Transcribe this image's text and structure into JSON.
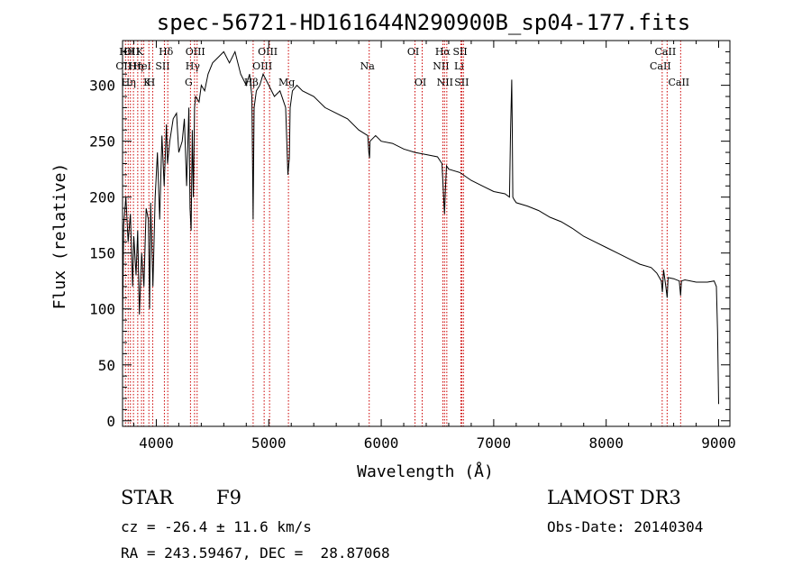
{
  "chart_data": {
    "type": "line",
    "title": "spec-56721-HD161644N290900B_sp04-177.fits",
    "xlabel": "Wavelength (Å)",
    "ylabel": "Flux (relative)",
    "xlim": [
      3700,
      9100
    ],
    "ylim": [
      -5,
      340
    ],
    "xticks": [
      4000,
      5000,
      6000,
      7000,
      8000,
      9000
    ],
    "xtick_labels": [
      "4000",
      "5000",
      "6000",
      "7000",
      "8000",
      "9000"
    ],
    "yticks": [
      0,
      50,
      100,
      150,
      200,
      250,
      300
    ],
    "ytick_labels": [
      "0",
      "50",
      "100",
      "150",
      "200",
      "250",
      "300"
    ],
    "grid": false,
    "line_color": "#000000",
    "marker_color": "#cc0000",
    "series": [
      {
        "name": "flux",
        "x": [
          3700,
          3710,
          3730,
          3750,
          3770,
          3790,
          3800,
          3820,
          3835,
          3850,
          3870,
          3890,
          3910,
          3930,
          3940,
          3950,
          3970,
          3990,
          4010,
          4030,
          4050,
          4070,
          4090,
          4100,
          4120,
          4150,
          4180,
          4200,
          4230,
          4250,
          4270,
          4290,
          4300,
          4310,
          4320,
          4330,
          4340,
          4350,
          4380,
          4400,
          4430,
          4460,
          4500,
          4550,
          4600,
          4650,
          4700,
          4750,
          4800,
          4830,
          4850,
          4861,
          4870,
          4890,
          4920,
          4950,
          5000,
          5050,
          5100,
          5150,
          5170,
          5183,
          5190,
          5210,
          5250,
          5300,
          5400,
          5500,
          5600,
          5700,
          5800,
          5880,
          5890,
          5896,
          5900,
          5950,
          6000,
          6100,
          6200,
          6300,
          6400,
          6500,
          6540,
          6555,
          6563,
          6570,
          6580,
          6600,
          6700,
          6800,
          6900,
          7000,
          7100,
          7140,
          7150,
          7160,
          7165,
          7170,
          7180,
          7200,
          7300,
          7400,
          7500,
          7600,
          7700,
          7800,
          7900,
          8000,
          8100,
          8200,
          8300,
          8400,
          8450,
          8490,
          8500,
          8510,
          8530,
          8542,
          8550,
          8600,
          8650,
          8662,
          8670,
          8700,
          8800,
          8900,
          8960,
          8980,
          8990,
          9000
        ],
        "y": [
          80,
          175,
          200,
          160,
          185,
          120,
          165,
          130,
          170,
          95,
          150,
          120,
          190,
          180,
          100,
          195,
          120,
          200,
          240,
          180,
          255,
          210,
          265,
          230,
          250,
          270,
          275,
          240,
          250,
          270,
          210,
          280,
          190,
          170,
          260,
          200,
          280,
          290,
          285,
          300,
          295,
          310,
          320,
          325,
          330,
          320,
          330,
          310,
          300,
          310,
          290,
          180,
          280,
          295,
          300,
          310,
          300,
          290,
          295,
          280,
          220,
          235,
          280,
          295,
          300,
          295,
          290,
          280,
          275,
          270,
          260,
          255,
          240,
          235,
          250,
          255,
          250,
          248,
          243,
          240,
          238,
          236,
          230,
          200,
          185,
          205,
          228,
          225,
          222,
          215,
          210,
          205,
          203,
          200,
          260,
          305,
          260,
          200,
          198,
          195,
          192,
          188,
          182,
          178,
          172,
          165,
          160,
          155,
          150,
          145,
          140,
          137,
          132,
          125,
          115,
          135,
          120,
          110,
          128,
          127,
          125,
          112,
          125,
          126,
          124,
          124,
          125,
          120,
          80,
          15
        ]
      }
    ],
    "lines": [
      {
        "w": 3726,
        "label": "OII",
        "row": 2
      },
      {
        "w": 3750,
        "label": "Hθ",
        "row": 1
      },
      {
        "w": 3770,
        "label": "Hη",
        "row": 3
      },
      {
        "w": 3797,
        "label": "OII",
        "row": 1
      },
      {
        "w": 3835,
        "label": "Hη",
        "row": 2
      },
      {
        "w": 3869,
        "label": "K",
        "row": 1
      },
      {
        "w": 3889,
        "label": "HeI",
        "row": 2
      },
      {
        "w": 3934,
        "label": "K",
        "row": 3
      },
      {
        "w": 3968,
        "label": "H",
        "row": 3
      },
      {
        "w": 4072,
        "label": "SII",
        "row": 2
      },
      {
        "w": 4102,
        "label": "Hδ",
        "row": 1
      },
      {
        "w": 4304,
        "label": "G",
        "row": 3
      },
      {
        "w": 4340,
        "label": "Hγ",
        "row": 2
      },
      {
        "w": 4363,
        "label": "OIII",
        "row": 1
      },
      {
        "w": 4861,
        "label": "Hβ",
        "row": 3
      },
      {
        "w": 4959,
        "label": "OIII",
        "row": 2
      },
      {
        "w": 5007,
        "label": "OIII",
        "row": 1
      },
      {
        "w": 5175,
        "label": "Mg",
        "row": 3
      },
      {
        "w": 5893,
        "label": "Na",
        "row": 2
      },
      {
        "w": 6300,
        "label": "OI",
        "row": 1
      },
      {
        "w": 6364,
        "label": "OI",
        "row": 3
      },
      {
        "w": 6548,
        "label": "NII",
        "row": 2
      },
      {
        "w": 6563,
        "label": "Hα",
        "row": 1
      },
      {
        "w": 6583,
        "label": "NII",
        "row": 3
      },
      {
        "w": 6708,
        "label": "Li",
        "row": 2
      },
      {
        "w": 6717,
        "label": "SII",
        "row": 1
      },
      {
        "w": 6731,
        "label": "SII",
        "row": 3
      },
      {
        "w": 8498,
        "label": "CaII",
        "row": 2
      },
      {
        "w": 8542,
        "label": "CaII",
        "row": 1
      },
      {
        "w": 8662,
        "label": "CaII",
        "row": 3
      }
    ]
  },
  "info": {
    "object_type": "STAR",
    "spectral_class": "F9",
    "survey": "LAMOST DR3",
    "redshift": "cz = -26.4 ± 11.6 km/s",
    "obs_date": "Obs-Date: 20140304",
    "coords": "RA = 243.59467, DEC =  28.87068"
  }
}
